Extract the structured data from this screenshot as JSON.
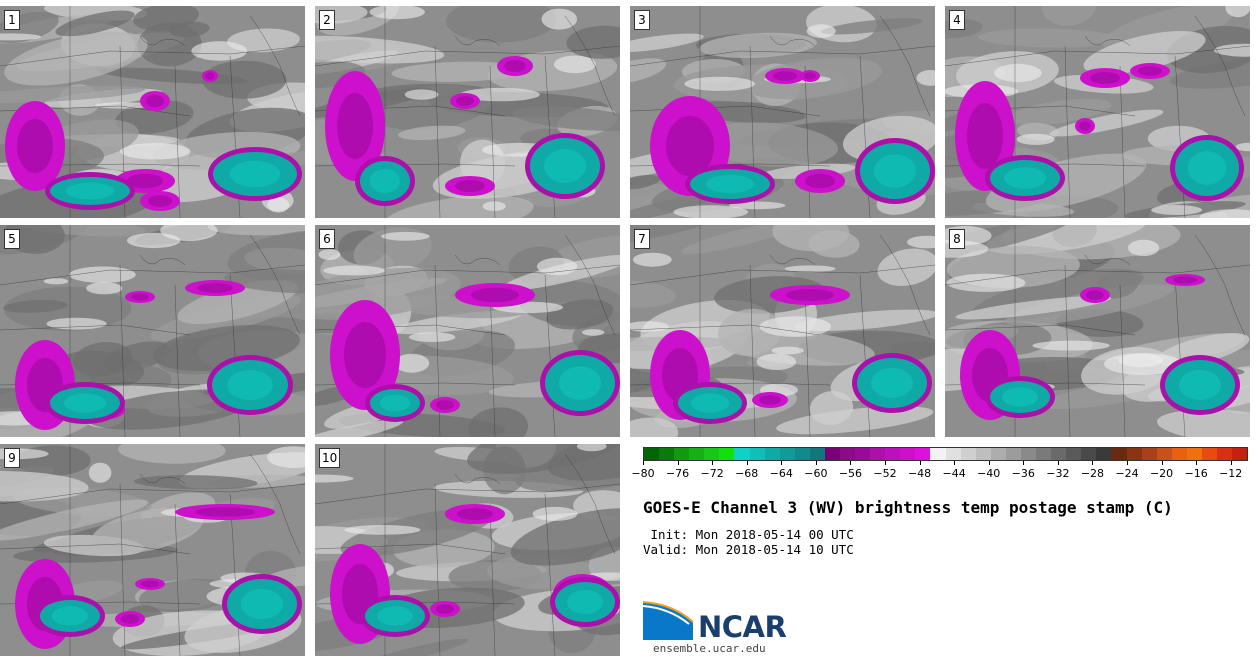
{
  "panels": [
    "1",
    "2",
    "3",
    "4",
    "5",
    "6",
    "7",
    "8",
    "9",
    "10"
  ],
  "colorbar": {
    "colors": [
      "#006400",
      "#0a7a0a",
      "#109a10",
      "#14b014",
      "#18c818",
      "#10e010",
      "#10d0c8",
      "#10c0b8",
      "#10aaa6",
      "#109a98",
      "#108a8a",
      "#107878",
      "#7a0078",
      "#8a0a88",
      "#9a0a9a",
      "#aa10aa",
      "#bb10bb",
      "#cc10cc",
      "#dd10dd",
      "#f2f2f2",
      "#e0e0e0",
      "#cfcfcf",
      "#bebebe",
      "#adadad",
      "#9c9c9c",
      "#8a8a8a",
      "#7a7a7a",
      "#6a6a6a",
      "#5a5a5a",
      "#4a4a4a",
      "#3a3a3a",
      "#6a2a10",
      "#8a3414",
      "#a8401a",
      "#c8501a",
      "#e86010",
      "#f07010",
      "#e84a10",
      "#d83010",
      "#c82010"
    ],
    "tick_labels": [
      "−80",
      "−76",
      "−72",
      "−68",
      "−64",
      "−60",
      "−56",
      "−52",
      "−48",
      "−44",
      "−40",
      "−36",
      "−32",
      "−28",
      "−24",
      "−20",
      "−16",
      "−12"
    ],
    "tick_values": [
      -80,
      -76,
      -72,
      -68,
      -64,
      -60,
      -56,
      -52,
      -48,
      -44,
      -40,
      -36,
      -32,
      -28,
      -24,
      -20,
      -16,
      -12
    ],
    "range": [
      -80,
      -10
    ]
  },
  "title": "GOES-E Channel 3 (WV) brightness temp postage stamp (C)",
  "init": " Init: Mon 2018-05-14 00 UTC",
  "valid": "Valid: Mon 2018-05-14 10 UTC",
  "logo_text": "NCAR",
  "url": "ensemble.ucar.edu"
}
